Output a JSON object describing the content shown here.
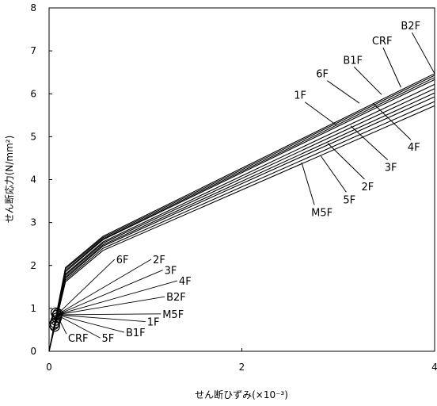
{
  "chart_data": {
    "type": "line",
    "title": "",
    "xlabel": "せん断ひずみ(×10⁻³)",
    "ylabel": "せん断応力(N/mm²)",
    "xlim": [
      0,
      4
    ],
    "ylim": [
      0,
      8
    ],
    "xticks": [
      "0",
      "2",
      "4"
    ],
    "yticks": [
      "0",
      "1",
      "2",
      "3",
      "4",
      "5",
      "6",
      "7",
      "8"
    ],
    "grid": false,
    "series": [
      {
        "name": "B2F",
        "x": [
          0,
          0.17,
          0.56,
          4.0
        ],
        "y": [
          0,
          1.95,
          2.68,
          6.47
        ]
      },
      {
        "name": "CRF",
        "x": [
          0,
          0.17,
          0.56,
          4.0
        ],
        "y": [
          0,
          1.92,
          2.65,
          6.43
        ]
      },
      {
        "name": "B1F",
        "x": [
          0,
          0.17,
          0.56,
          4.0
        ],
        "y": [
          0,
          1.88,
          2.62,
          6.38
        ]
      },
      {
        "name": "6F",
        "x": [
          0,
          0.17,
          0.56,
          4.0
        ],
        "y": [
          0,
          1.85,
          2.6,
          6.33
        ]
      },
      {
        "name": "1F",
        "x": [
          0,
          0.17,
          0.56,
          4.0
        ],
        "y": [
          0,
          1.8,
          2.55,
          6.22
        ]
      },
      {
        "name": "4F",
        "x": [
          0,
          0.17,
          0.56,
          4.0
        ],
        "y": [
          0,
          1.77,
          2.52,
          6.12
        ]
      },
      {
        "name": "3F",
        "x": [
          0,
          0.17,
          0.56,
          4.0
        ],
        "y": [
          0,
          1.73,
          2.48,
          6.02
        ]
      },
      {
        "name": "2F",
        "x": [
          0,
          0.17,
          0.56,
          4.0
        ],
        "y": [
          0,
          1.7,
          2.45,
          5.93
        ]
      },
      {
        "name": "5F",
        "x": [
          0,
          0.17,
          0.56,
          4.0
        ],
        "y": [
          0,
          1.66,
          2.4,
          5.82
        ]
      },
      {
        "name": "M5F",
        "x": [
          0,
          0.17,
          0.56,
          4.0
        ],
        "y": [
          0,
          1.62,
          2.35,
          5.72
        ]
      }
    ],
    "markers": [
      {
        "x": 0.05,
        "y": 0.62
      },
      {
        "x": 0.06,
        "y": 0.66
      },
      {
        "x": 0.07,
        "y": 0.72
      },
      {
        "x": 0.08,
        "y": 0.78
      },
      {
        "x": 0.08,
        "y": 0.84
      },
      {
        "x": 0.07,
        "y": 0.9
      },
      {
        "x": 0.06,
        "y": 0.58
      },
      {
        "x": 0.09,
        "y": 0.88
      }
    ],
    "annotations_upper": [
      {
        "text": "B2F",
        "x": 3.65,
        "y": 7.5,
        "tx": 4.0,
        "ty": 6.47
      },
      {
        "text": "CRF",
        "x": 3.35,
        "y": 7.15,
        "tx": 3.65,
        "ty": 6.15
      },
      {
        "text": "B1F",
        "x": 3.05,
        "y": 6.7,
        "tx": 3.45,
        "ty": 5.98
      },
      {
        "text": "6F",
        "x": 2.77,
        "y": 6.38,
        "tx": 3.22,
        "ty": 5.78
      },
      {
        "text": "1F",
        "x": 2.54,
        "y": 5.88,
        "tx": 2.98,
        "ty": 5.27
      },
      {
        "text": "4F",
        "x": 3.72,
        "y": 4.67,
        "tx": 3.36,
        "ty": 5.78
      },
      {
        "text": "3F",
        "x": 3.48,
        "y": 4.2,
        "tx": 3.13,
        "ty": 5.25
      },
      {
        "text": "2F",
        "x": 3.24,
        "y": 3.75,
        "tx": 2.89,
        "ty": 4.85
      },
      {
        "text": "5F",
        "x": 3.05,
        "y": 3.45,
        "tx": 2.82,
        "ty": 4.55
      },
      {
        "text": "M5F",
        "x": 2.72,
        "y": 3.15,
        "tx": 2.62,
        "ty": 4.4
      }
    ],
    "annotations_lower": [
      {
        "text": "6F",
        "x": 0.68,
        "y": 2.05
      },
      {
        "text": "2F",
        "x": 1.06,
        "y": 2.05
      },
      {
        "text": "3F",
        "x": 1.18,
        "y": 1.8
      },
      {
        "text": "4F",
        "x": 1.33,
        "y": 1.55
      },
      {
        "text": "B2F",
        "x": 1.2,
        "y": 1.18
      },
      {
        "text": "M5F",
        "x": 1.16,
        "y": 0.78
      },
      {
        "text": "1F",
        "x": 1.0,
        "y": 0.6
      },
      {
        "text": "B1F",
        "x": 0.78,
        "y": 0.35
      },
      {
        "text": "5F",
        "x": 0.53,
        "y": 0.22
      },
      {
        "text": "CRF",
        "x": 0.18,
        "y": 0.22
      }
    ]
  }
}
